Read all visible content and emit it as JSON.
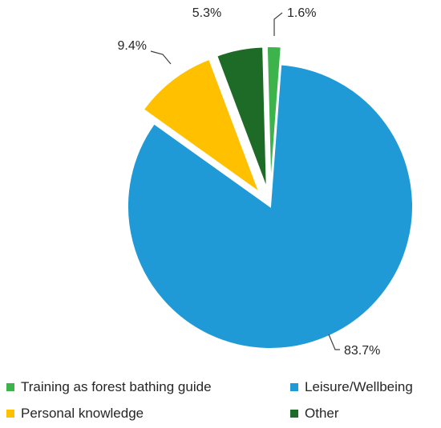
{
  "chart_data": {
    "type": "pie",
    "title": "",
    "slices": [
      {
        "name": "Training as forest bathing guide",
        "value": 1.6,
        "label": "1.6%",
        "color": "#3cb44b",
        "exploded": true
      },
      {
        "name": "Leisure/Wellbeing",
        "value": 83.7,
        "label": "83.7%",
        "color": "#1f9ad6",
        "exploded": false
      },
      {
        "name": "Personal knowledge",
        "value": 9.4,
        "label": "9.4%",
        "color": "#ffc000",
        "exploded": true
      },
      {
        "name": "Other",
        "value": 5.3,
        "label": "5.3%",
        "color": "#1e6b27",
        "exploded": true
      }
    ],
    "legend_position": "bottom",
    "legend": [
      {
        "label": "Training as forest bathing guide",
        "color": "#3cb44b"
      },
      {
        "label": "Leisure/Wellbeing",
        "color": "#1f9ad6"
      },
      {
        "label": "Personal knowledge",
        "color": "#ffc000"
      },
      {
        "label": "Other",
        "color": "#1e6b27"
      }
    ]
  }
}
